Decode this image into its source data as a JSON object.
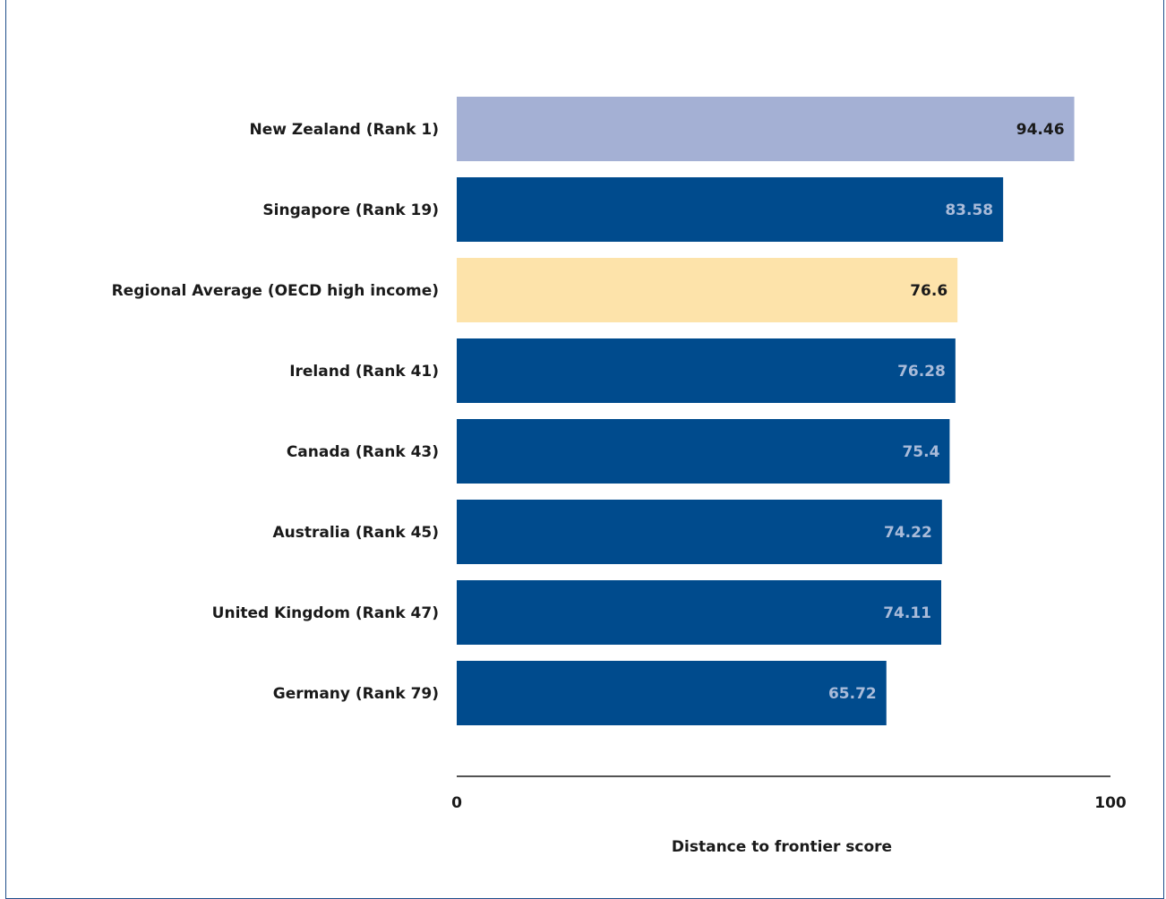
{
  "chart_data": {
    "type": "bar",
    "orientation": "horizontal",
    "categories": [
      "New Zealand (Rank 1)",
      "Singapore (Rank 19)",
      "Regional Average (OECD high income)",
      "Ireland (Rank 41)",
      "Canada (Rank 43)",
      "Australia (Rank 45)",
      "United Kingdom (Rank 47)",
      "Germany (Rank 79)"
    ],
    "values": [
      94.46,
      83.58,
      76.6,
      76.28,
      75.4,
      74.22,
      74.11,
      65.72
    ],
    "value_labels": [
      "94.46",
      "83.58",
      "76.6",
      "76.28",
      "75.4",
      "74.22",
      "74.11",
      "65.72"
    ],
    "bar_colors": [
      "#a4b0d4",
      "#004b8d",
      "#fde3aa",
      "#004b8d",
      "#004b8d",
      "#004b8d",
      "#004b8d",
      "#004b8d"
    ],
    "label_colors": [
      "#1a1a1a",
      "#a9bbd9",
      "#1a1a1a",
      "#a9bbd9",
      "#a9bbd9",
      "#a9bbd9",
      "#a9bbd9",
      "#a9bbd9"
    ],
    "xlim": [
      0,
      100
    ],
    "xticks": [
      "0",
      "100"
    ],
    "xlabel": "Distance to frontier score",
    "title": "",
    "grid": false,
    "legend": "none"
  }
}
